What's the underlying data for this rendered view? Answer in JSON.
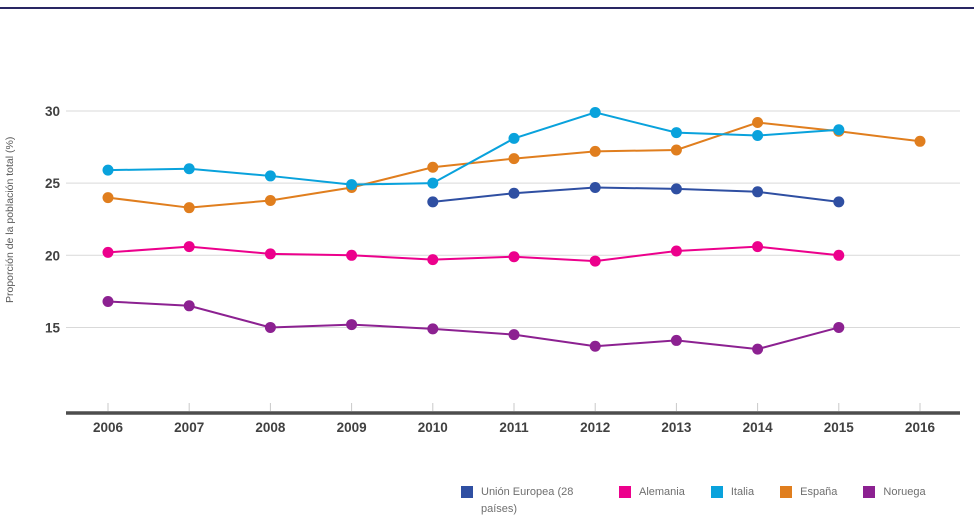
{
  "page": {
    "top_rule_color": "#292663"
  },
  "chart_data": {
    "type": "line",
    "title": "",
    "xlabel": "",
    "ylabel": "Proporción de la población total (%)",
    "x": [
      "2006",
      "2007",
      "2008",
      "2009",
      "2010",
      "2011",
      "2012",
      "2013",
      "2014",
      "2015",
      "2016"
    ],
    "y_gridlines": [
      30,
      25,
      20,
      15
    ],
    "ylim": [
      12,
      31.5
    ],
    "grid": "horizontal",
    "legend_position": "bottom",
    "series": [
      {
        "name": "Unión Europea (28 países)",
        "color": "#2f4fa2",
        "values": [
          null,
          null,
          null,
          null,
          23.7,
          24.3,
          24.7,
          24.6,
          24.4,
          23.7,
          null
        ]
      },
      {
        "name": "Alemania",
        "color": "#ec008c",
        "values": [
          20.2,
          20.6,
          20.1,
          20.0,
          19.7,
          19.9,
          19.6,
          20.3,
          20.6,
          20.0,
          null
        ]
      },
      {
        "name": "Italia",
        "color": "#09a2dc",
        "values": [
          25.9,
          26.0,
          25.5,
          24.9,
          25.0,
          28.1,
          29.9,
          28.5,
          28.3,
          28.7,
          null
        ]
      },
      {
        "name": "España",
        "color": "#e07e1e",
        "values": [
          24.0,
          23.3,
          23.8,
          24.7,
          26.1,
          26.7,
          27.2,
          27.3,
          29.2,
          28.6,
          27.9
        ]
      },
      {
        "name": "Noruega",
        "color": "#8c2191",
        "values": [
          16.8,
          16.5,
          15.0,
          15.2,
          14.9,
          14.5,
          13.7,
          14.1,
          13.5,
          15.0,
          null
        ]
      }
    ]
  }
}
